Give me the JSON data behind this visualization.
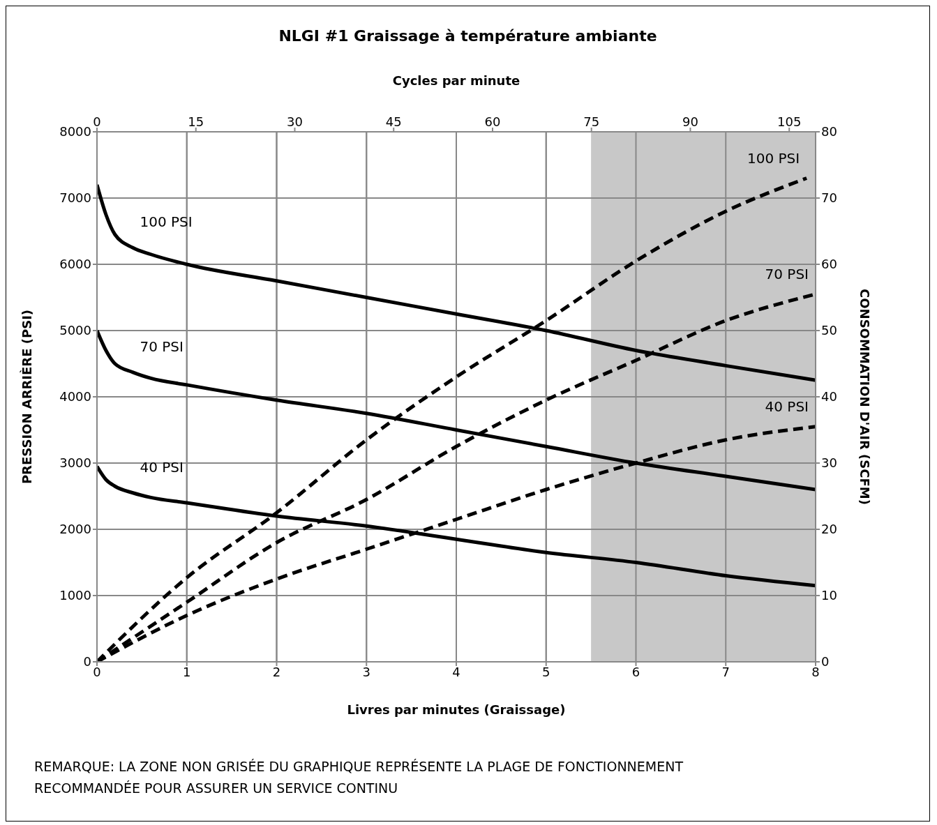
{
  "chart_data": {
    "type": "line",
    "title": "NLGI #1 Graissage à température ambiante",
    "xlabel": "Livres par minutes (Graissage)",
    "ylabel": "PRESSION ARRIÈRE (PSI)",
    "y2label": "CONSOMMATION D'AIR (SCFM)",
    "x2label": "Cycles par minute",
    "xlim": [
      0,
      8
    ],
    "xticks": [
      0,
      1,
      2,
      3,
      4,
      5,
      6,
      7,
      8
    ],
    "x2lim": [
      0,
      109
    ],
    "x2ticks": [
      0,
      15,
      30,
      45,
      60,
      75,
      90,
      105
    ],
    "ylim": [
      0,
      8000
    ],
    "yticks": [
      0,
      1000,
      2000,
      3000,
      4000,
      5000,
      6000,
      7000,
      8000
    ],
    "y2lim": [
      0,
      80
    ],
    "y2ticks": [
      0,
      10,
      20,
      30,
      40,
      50,
      60,
      70,
      80
    ],
    "grid": true,
    "legend": false,
    "marker": "none",
    "bands": [
      {
        "axis": "x",
        "from": 5.5,
        "to": 8,
        "color": "#c8c8c8"
      }
    ],
    "series": [
      {
        "name": "100 PSI",
        "color": "#000000",
        "line_style": "solid",
        "x": [
          0,
          0.1,
          0.2,
          0.4,
          0.6,
          1,
          2,
          3,
          4,
          5,
          6,
          7,
          8
        ],
        "values": [
          7200,
          6750,
          6450,
          6250,
          6150,
          6000,
          5750,
          5500,
          5250,
          5000,
          4700,
          4470,
          4250
        ]
      },
      {
        "name": "70 PSI",
        "color": "#000000",
        "line_style": "solid",
        "x": [
          0,
          0.1,
          0.2,
          0.4,
          0.6,
          1,
          2,
          3,
          4,
          5,
          6,
          7,
          8
        ],
        "values": [
          5000,
          4700,
          4500,
          4370,
          4280,
          4180,
          3950,
          3750,
          3500,
          3250,
          3000,
          2800,
          2600
        ]
      },
      {
        "name": "40 PSI",
        "color": "#000000",
        "line_style": "solid",
        "x": [
          0,
          0.1,
          0.2,
          0.4,
          0.6,
          1,
          2,
          3,
          4,
          5,
          6,
          7,
          8
        ],
        "values": [
          2950,
          2750,
          2650,
          2550,
          2480,
          2400,
          2200,
          2050,
          1850,
          1650,
          1500,
          1300,
          1150
        ]
      },
      {
        "name": "100 PSI",
        "color": "#000000",
        "line_style": "dashed",
        "axis": "y2",
        "x": [
          0,
          1,
          2,
          3,
          4,
          5,
          6,
          7,
          7.9
        ],
        "values": [
          0,
          12.7,
          22.5,
          33.5,
          43,
          51.5,
          60.5,
          68,
          73
        ]
      },
      {
        "name": "70 PSI",
        "color": "#000000",
        "line_style": "dashed",
        "axis": "y2",
        "x": [
          0,
          1,
          2,
          3,
          4,
          5,
          6,
          7,
          8
        ],
        "values": [
          0,
          9,
          18,
          24.5,
          32.5,
          39.5,
          45.5,
          51.5,
          55.5
        ]
      },
      {
        "name": "40 PSI",
        "color": "#000000",
        "line_style": "dashed",
        "axis": "y2",
        "x": [
          0,
          1,
          2,
          3,
          4,
          5,
          6,
          7,
          8
        ],
        "values": [
          0,
          7,
          12.5,
          17,
          21.5,
          26,
          30,
          33.5,
          35.5
        ]
      }
    ],
    "annotations": [
      "REMARQUE: LA ZONE NON GRISÉE DU GRAPHIQUE REPRÉSENTE LA PLAGE DE FONCTIONNEMENT RECOMMANDÉE POUR ASSURER UN SERVICE CONTINU"
    ]
  }
}
